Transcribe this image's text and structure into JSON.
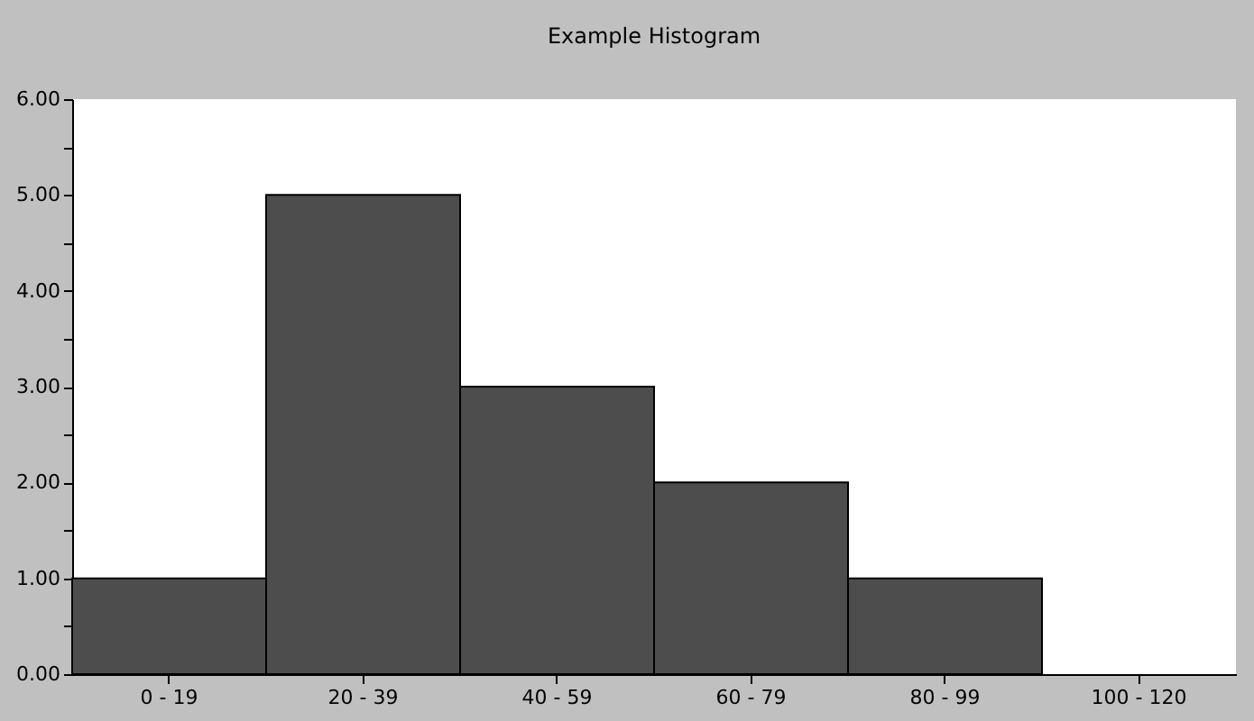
{
  "chart_data": {
    "type": "bar",
    "title": "Example Histogram",
    "categories": [
      "0 - 19",
      "20 - 39",
      "40 - 59",
      "60 - 79",
      "80 - 99",
      "100 - 120"
    ],
    "values": [
      1,
      5,
      3,
      2,
      1,
      0
    ],
    "color": "#4d4d4d",
    "ylim": [
      0,
      6
    ],
    "yticks": [
      {
        "value": 0,
        "label": "0.00"
      },
      {
        "value": 0.5,
        "label": null
      },
      {
        "value": 1,
        "label": "1.00"
      },
      {
        "value": 1.5,
        "label": null
      },
      {
        "value": 2,
        "label": "2.00"
      },
      {
        "value": 2.5,
        "label": null
      },
      {
        "value": 3,
        "label": "3.00"
      },
      {
        "value": 3.5,
        "label": null
      },
      {
        "value": 4,
        "label": "4.00"
      },
      {
        "value": 4.5,
        "label": null
      },
      {
        "value": 5,
        "label": "5.00"
      },
      {
        "value": 5.5,
        "label": null
      },
      {
        "value": 6,
        "label": "6.00"
      }
    ],
    "grid": false
  }
}
